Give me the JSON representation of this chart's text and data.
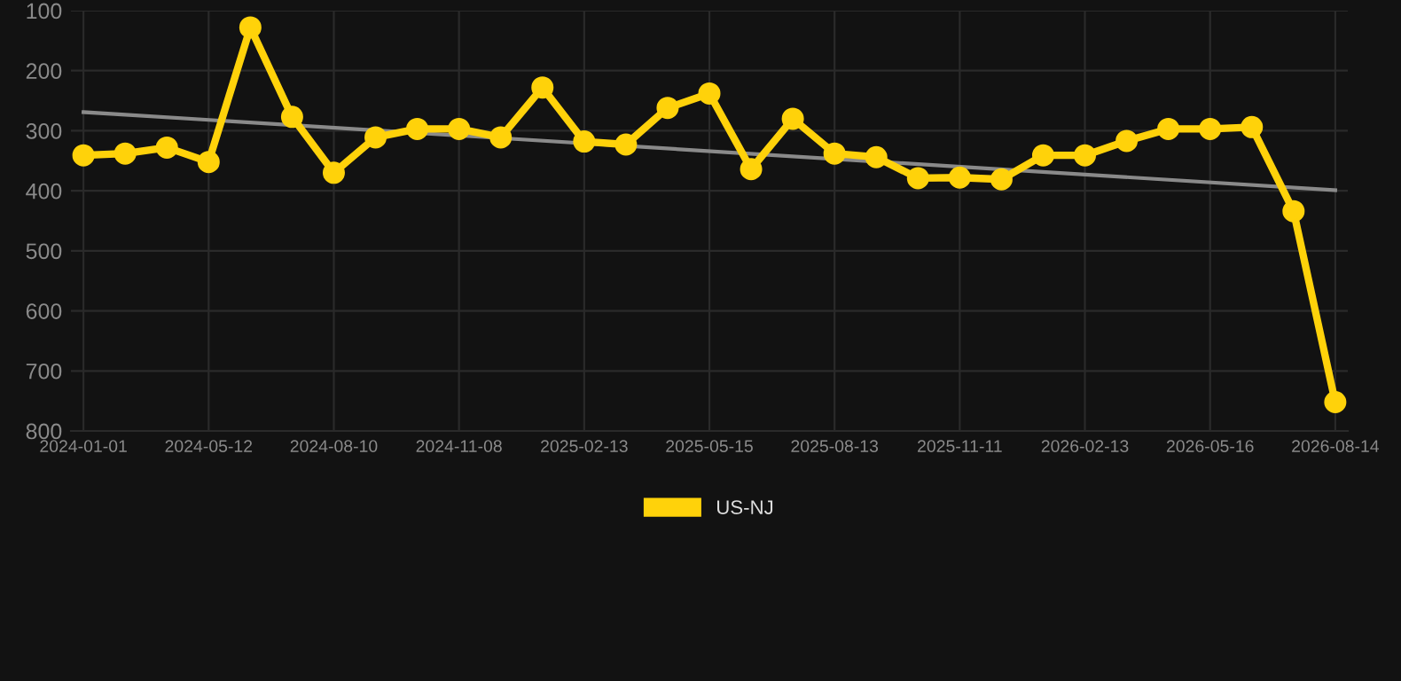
{
  "chart_data": {
    "type": "line",
    "categories": [
      "2024-01-01",
      null,
      null,
      "2024-05-12",
      null,
      null,
      "2024-08-10",
      null,
      null,
      "2024-11-08",
      null,
      null,
      "2025-02-13",
      null,
      null,
      "2025-05-15",
      null,
      null,
      "2025-08-13",
      null,
      null,
      "2025-11-11",
      null,
      null,
      "2026-02-13",
      null,
      null,
      "2026-05-16",
      null,
      null,
      "2026-08-14"
    ],
    "series": [
      {
        "name": "US-NJ",
        "color": "#ffd20a",
        "marker": "circle",
        "values": [
          341,
          338,
          328,
          352,
          128,
          277,
          370,
          311,
          297,
          297,
          311,
          228,
          318,
          323,
          262,
          238,
          364,
          280,
          338,
          344,
          379,
          378,
          381,
          341,
          341,
          317,
          297,
          297,
          294,
          434,
          752
        ]
      },
      {
        "type": "line",
        "color": "#8a8a8a",
        "marker": "none",
        "values": [
          269,
          null,
          null,
          null,
          null,
          null,
          null,
          null,
          null,
          null,
          null,
          null,
          null,
          null,
          null,
          null,
          null,
          null,
          null,
          null,
          null,
          null,
          null,
          null,
          null,
          null,
          null,
          null,
          null,
          null,
          399
        ]
      }
    ],
    "ylim": [
      800,
      100
    ],
    "yticks": [
      100,
      200,
      300,
      400,
      500,
      600,
      700,
      800
    ],
    "grid": true,
    "legend": "bottom"
  }
}
